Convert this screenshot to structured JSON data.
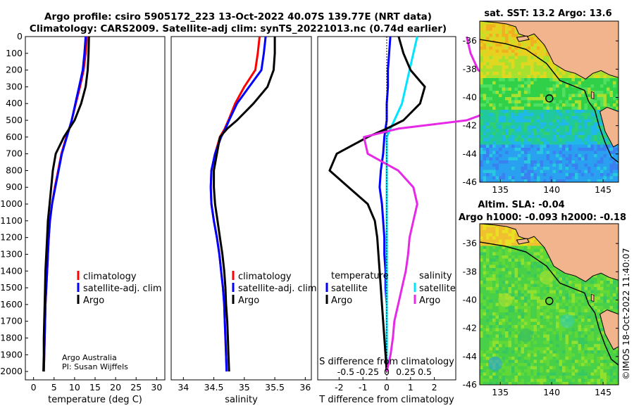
{
  "header": {
    "title_line1": "Argo profile: csiro 5905172_223 13-Oct-2022 40.07S 139.77E (NRT data)",
    "title_line2": "Climatology: CARS2009. Satellite-adj clim: synTS_20221013.nc (0.74d earlier)"
  },
  "colors": {
    "climatology": "#ff0000",
    "satellite": "#0000ff",
    "argo": "#000000",
    "sat_diff_T": "#0000ff",
    "sat_diff_S": "#00e5ff",
    "argo_diff_S": "#e629e6",
    "land": "#f2b48c"
  },
  "legends": {
    "temperature_panel": [
      "climatology",
      "satellite-adj. clim",
      "Argo"
    ],
    "salinity_panel": [
      "climatology",
      "satellite-adj. clim",
      "Argo"
    ],
    "diff_temperature_header": "temperature",
    "diff_salinity_header": "salinity",
    "diff_temperature_items": [
      "satellite",
      "Argo"
    ],
    "diff_salinity_items": [
      "satellite",
      "Argo"
    ]
  },
  "credits": {
    "line1": "Argo Australia",
    "line2": "PI: Susan Wijffels",
    "timestamp": "©IMOS 18-Oct-2022 11:40:07"
  },
  "chart_data": [
    {
      "id": "temperature",
      "type": "line",
      "xlabel": "temperature (deg C)",
      "ylabel": "depth",
      "xlim": [
        -2,
        32
      ],
      "xticks": [
        0,
        5,
        10,
        15,
        20,
        25,
        30
      ],
      "ylim": [
        0,
        2050
      ],
      "yticks": [
        0,
        100,
        200,
        300,
        400,
        500,
        600,
        700,
        800,
        900,
        1000,
        1100,
        1200,
        1300,
        1400,
        1500,
        1600,
        1700,
        1800,
        1900,
        2000
      ],
      "depth": [
        0,
        100,
        200,
        300,
        400,
        500,
        550,
        600,
        700,
        800,
        900,
        1000,
        1100,
        1200,
        1300,
        1400,
        1500,
        1600,
        1700,
        1800,
        1900,
        2000
      ],
      "series": [
        {
          "name": "climatology",
          "values": [
            13.0,
            12.7,
            12.2,
            11.3,
            10.3,
            9.3,
            8.7,
            8.0,
            6.8,
            6.0,
            5.2,
            4.5,
            4.0,
            3.7,
            3.5,
            3.3,
            3.1,
            2.9,
            2.8,
            2.7,
            2.6,
            2.5
          ]
        },
        {
          "name": "satellite-adj. clim",
          "values": [
            12.7,
            12.4,
            12.0,
            11.1,
            10.2,
            9.3,
            8.7,
            8.1,
            6.9,
            6.1,
            5.3,
            4.5,
            4.0,
            3.7,
            3.5,
            3.3,
            3.1,
            2.9,
            2.8,
            2.7,
            2.6,
            2.5
          ]
        },
        {
          "name": "Argo",
          "values": [
            13.5,
            13.4,
            13.2,
            12.7,
            11.6,
            10.0,
            8.7,
            7.4,
            5.4,
            4.7,
            4.3,
            3.9,
            3.5,
            3.3,
            3.1,
            2.9,
            2.8,
            2.7,
            2.6,
            2.5,
            2.5,
            2.4
          ]
        }
      ]
    },
    {
      "id": "salinity",
      "type": "line",
      "xlabel": "salinity",
      "ylabel": "",
      "xlim": [
        33.8,
        36.1
      ],
      "xticks": [
        34,
        34.5,
        35,
        35.5,
        36
      ],
      "ylim": [
        0,
        2050
      ],
      "depth": [
        0,
        100,
        200,
        300,
        400,
        500,
        550,
        600,
        700,
        800,
        900,
        1000,
        1100,
        1200,
        1300,
        1400,
        1500,
        1600,
        1700,
        1800,
        1900,
        2000
      ],
      "series": [
        {
          "name": "climatology",
          "values": [
            35.25,
            35.22,
            35.18,
            35.0,
            34.85,
            34.74,
            34.68,
            34.6,
            34.52,
            34.46,
            34.45,
            34.46,
            34.5,
            34.55,
            34.59,
            34.62,
            34.65,
            34.67,
            34.68,
            34.69,
            34.7,
            34.71
          ]
        },
        {
          "name": "satellite-adj. clim",
          "values": [
            35.35,
            35.32,
            35.28,
            35.08,
            34.88,
            34.75,
            34.69,
            34.62,
            34.52,
            34.46,
            34.45,
            34.46,
            34.5,
            34.55,
            34.59,
            34.62,
            34.65,
            34.67,
            34.68,
            34.69,
            34.7,
            34.71
          ]
        },
        {
          "name": "Argo",
          "values": [
            35.5,
            35.5,
            35.48,
            35.38,
            35.15,
            34.88,
            34.72,
            34.6,
            34.55,
            34.5,
            34.5,
            34.52,
            34.56,
            34.6,
            34.64,
            34.67,
            34.69,
            34.7,
            34.72,
            34.73,
            34.74,
            34.75
          ]
        }
      ]
    },
    {
      "id": "differences",
      "type": "line",
      "xlabel": "T difference from climatology",
      "xlabel_top": "S difference from climatology",
      "xlim": [
        -2.9,
        2.9
      ],
      "xticks": [
        -2,
        -1,
        0,
        1,
        2
      ],
      "xticks_top_values": [
        -0.5,
        -0.25,
        0,
        0.25,
        0.5
      ],
      "xticks_top_labels": [
        "-0.5",
        "-0.25",
        "0",
        "0.25",
        "0.5"
      ],
      "ylim": [
        0,
        2050
      ],
      "depth": [
        0,
        100,
        200,
        300,
        400,
        500,
        550,
        600,
        700,
        800,
        900,
        1000,
        1100,
        1200,
        1300,
        1400,
        1500,
        1600,
        1700,
        1800,
        1900,
        2000
      ],
      "series": [
        {
          "name": "satellite T diff",
          "values": [
            0.15,
            0.1,
            0.05,
            0.05,
            0.0,
            0.0,
            -0.05,
            -0.1,
            -0.15,
            -0.25,
            -0.3,
            -0.2,
            -0.15,
            -0.1,
            -0.1,
            -0.05,
            -0.05,
            0.0,
            0.0,
            0.0,
            0.0,
            0.0
          ]
        },
        {
          "name": "satellite S diff",
          "values": [
            0.4,
            0.35,
            0.3,
            0.25,
            0.2,
            0.1,
            0.05,
            0.0,
            0.0,
            0.0,
            0.0,
            0.0,
            0.0,
            0.0,
            0.0,
            0.0,
            0.0,
            0.0,
            0.0,
            0.0,
            0.0,
            0.0
          ]
        },
        {
          "name": "Argo T diff",
          "values": [
            0.5,
            0.7,
            1.0,
            1.6,
            1.4,
            0.7,
            0.0,
            -0.8,
            -2.1,
            -2.4,
            -1.6,
            -0.8,
            -0.5,
            -0.4,
            -0.35,
            -0.3,
            -0.25,
            -0.2,
            -0.15,
            -0.1,
            -0.05,
            0.0
          ]
        },
        {
          "name": "Argo S diff",
          "values": [
            1.05,
            1.1,
            1.2,
            1.55,
            1.65,
            1.05,
            0.15,
            -0.3,
            -0.25,
            0.15,
            0.35,
            0.4,
            0.35,
            0.3,
            0.28,
            0.25,
            0.2,
            0.15,
            0.1,
            0.08,
            0.05,
            0.0
          ]
        }
      ]
    },
    {
      "id": "sst_map",
      "type": "heatmap",
      "title": "sat. SST: 13.2 Argo: 13.6",
      "xticks": [
        135,
        140,
        145
      ],
      "yticks": [
        -36,
        -38,
        -40,
        -42,
        -44,
        -46
      ],
      "xlim": [
        133,
        146.5
      ],
      "ylim": [
        -46,
        -34.6
      ],
      "float_position": {
        "lon": 139.77,
        "lat": -40.07
      }
    },
    {
      "id": "sla_map",
      "type": "heatmap",
      "title_line1": "Altim. SLA: -0.04",
      "title_line2": "Argo h1000: -0.093 h2000: -0.18",
      "xticks": [
        135,
        140,
        145
      ],
      "yticks": [
        -36,
        -38,
        -40,
        -42,
        -44,
        -46
      ],
      "xlim": [
        133,
        146.5
      ],
      "ylim": [
        -46,
        -34.6
      ],
      "float_position": {
        "lon": 139.77,
        "lat": -40.07
      }
    }
  ]
}
